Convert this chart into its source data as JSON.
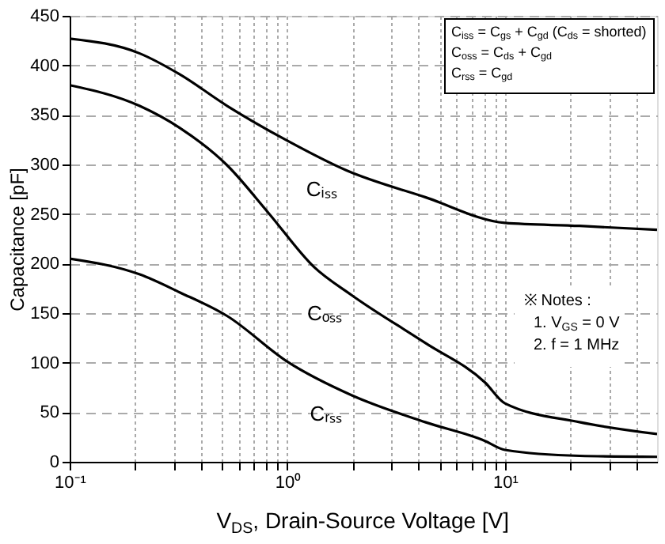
{
  "chart_data": {
    "type": "line",
    "xlabel": "V$_{DS}$, Drain-Source Voltage [V]",
    "ylabel": "Capacitance [pF]",
    "log": "x",
    "grid": true,
    "legend": false,
    "marker": "none",
    "line_style": "solid",
    "xlim": [
      0.1,
      50
    ],
    "ylim": [
      0,
      450
    ],
    "xticks": [
      {
        "value": 0.1,
        "label": "10⁻¹"
      },
      {
        "value": 0.2,
        "label": null
      },
      {
        "value": 0.3,
        "label": null
      },
      {
        "value": 0.4,
        "label": null
      },
      {
        "value": 0.5,
        "label": null
      },
      {
        "value": 0.6,
        "label": null
      },
      {
        "value": 0.7,
        "label": null
      },
      {
        "value": 0.8,
        "label": null
      },
      {
        "value": 0.9,
        "label": null
      },
      {
        "value": 1,
        "label": "10⁰"
      },
      {
        "value": 2,
        "label": null
      },
      {
        "value": 3,
        "label": null
      },
      {
        "value": 4,
        "label": null
      },
      {
        "value": 5,
        "label": null
      },
      {
        "value": 6,
        "label": null
      },
      {
        "value": 7,
        "label": null
      },
      {
        "value": 8,
        "label": null
      },
      {
        "value": 9,
        "label": null
      },
      {
        "value": 10,
        "label": "10¹"
      },
      {
        "value": 20,
        "label": null
      },
      {
        "value": 30,
        "label": null
      },
      {
        "value": 40,
        "label": null
      }
    ],
    "yticks": [
      0,
      50,
      100,
      150,
      200,
      250,
      300,
      350,
      400,
      450
    ],
    "series": [
      {
        "name": "Cᵢₛₛ",
        "color": "#000000",
        "x": [
          0.1,
          0.21,
          0.32,
          0.53,
          1.0,
          1.87,
          4.3,
          10,
          22,
          50
        ],
        "values": [
          427,
          412,
          391,
          359,
          324,
          294,
          267,
          241,
          238,
          234
        ]
      },
      {
        "name": "Cₒₛₛ",
        "color": "#000000",
        "x": [
          0.1,
          0.21,
          0.32,
          0.53,
          0.82,
          1.32,
          1.98,
          4.3,
          8.1,
          10,
          22,
          50
        ],
        "values": [
          380,
          359,
          337,
          299,
          251,
          197,
          168,
          120,
          80,
          59,
          40,
          28
        ]
      },
      {
        "name": "Cᵣₛₛ",
        "color": "#000000",
        "x": [
          0.1,
          0.21,
          0.32,
          0.53,
          1.0,
          1.98,
          4.3,
          8.1,
          10,
          22,
          50
        ],
        "values": [
          205,
          189,
          171,
          147,
          101,
          67,
          40,
          21,
          12,
          6,
          5
        ]
      }
    ],
    "annotations": [
      "C$_{iss}$ = C$_{gs}$ + C$_{gd}$ (C$_{ds}$ = shorted)",
      "C$_{oss}$ = C$_{ds}$ + C$_{gd}$",
      "C$_{rss}$ = C$_{gd}$",
      "※ Notes :",
      "1. V$_{GS}$ = 0 V",
      "2. f = 1 MHz"
    ]
  }
}
